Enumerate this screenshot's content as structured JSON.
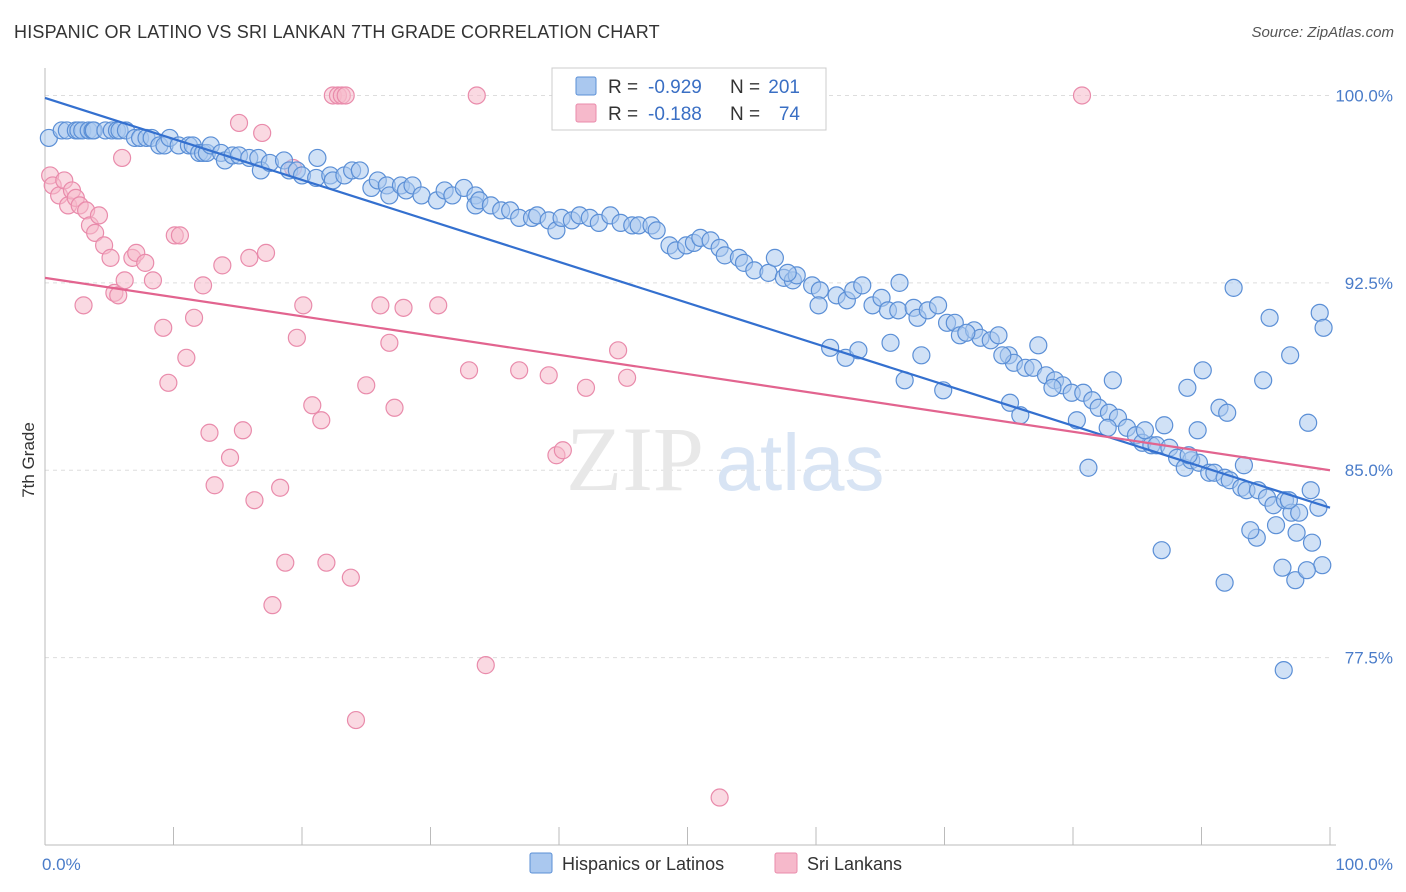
{
  "title": "HISPANIC OR LATINO VS SRI LANKAN 7TH GRADE CORRELATION CHART",
  "source": "Source: ZipAtlas.com",
  "watermark": {
    "zip": "ZIP",
    "atlas": "atlas"
  },
  "colors": {
    "blue_fill": "#aac8ef",
    "blue_stroke": "#5b8fd6",
    "blue_line": "#3470cf",
    "pink_fill": "#f6b9cb",
    "pink_stroke": "#e98bab",
    "pink_line": "#e2648f",
    "grid": "#dddddd",
    "tick_text": "#4a7cc9"
  },
  "legend": {
    "rows": [
      {
        "r_label": "R =",
        "r_value": "-0.929",
        "n_label": "N =",
        "n_value": "201"
      },
      {
        "r_label": "R =",
        "r_value": "-0.188",
        "n_label": "N =",
        "n_value": "74"
      }
    ]
  },
  "chart_data": {
    "type": "scatter",
    "title": "HISPANIC OR LATINO VS SRI LANKAN 7TH GRADE CORRELATION CHART",
    "xlabel": "",
    "ylabel": "7th Grade",
    "xlim": [
      0,
      100
    ],
    "ylim": [
      70.0,
      101.5
    ],
    "x_tick_labels": [
      "0.0%",
      "100.0%"
    ],
    "y_ticks": [
      77.5,
      85.0,
      92.5,
      100.0
    ],
    "y_tick_labels": [
      "77.5%",
      "85.0%",
      "92.5%",
      "100.0%"
    ],
    "grid": true,
    "legend_position": "bottom-center",
    "series": [
      {
        "name": "Hispanics or Latinos",
        "color": "#aac8ef",
        "trend": {
          "x": [
            0,
            100
          ],
          "y": [
            99.9,
            83.5
          ]
        },
        "points": [
          [
            0.3,
            98.3
          ],
          [
            1.3,
            98.6
          ],
          [
            1.7,
            98.6
          ],
          [
            2.4,
            98.6
          ],
          [
            2.6,
            98.6
          ],
          [
            2.9,
            98.6
          ],
          [
            3.4,
            98.6
          ],
          [
            3.7,
            98.6
          ],
          [
            3.8,
            98.6
          ],
          [
            4.7,
            98.6
          ],
          [
            5.2,
            98.6
          ],
          [
            5.6,
            98.6
          ],
          [
            5.8,
            98.6
          ],
          [
            6.3,
            98.6
          ],
          [
            7.0,
            98.3
          ],
          [
            7.4,
            98.3
          ],
          [
            7.9,
            98.3
          ],
          [
            8.3,
            98.3
          ],
          [
            8.9,
            98.0
          ],
          [
            9.3,
            98.0
          ],
          [
            9.7,
            98.3
          ],
          [
            10.4,
            98.0
          ],
          [
            11.2,
            98.0
          ],
          [
            11.5,
            98.0
          ],
          [
            12.0,
            97.7
          ],
          [
            12.3,
            97.7
          ],
          [
            12.6,
            97.7
          ],
          [
            12.9,
            98.0
          ],
          [
            13.7,
            97.7
          ],
          [
            14.0,
            97.4
          ],
          [
            14.6,
            97.6
          ],
          [
            15.1,
            97.6
          ],
          [
            15.9,
            97.5
          ],
          [
            16.6,
            97.5
          ],
          [
            16.8,
            97.0
          ],
          [
            17.5,
            97.3
          ],
          [
            18.6,
            97.4
          ],
          [
            19.0,
            97.0
          ],
          [
            19.6,
            97.0
          ],
          [
            20.0,
            96.8
          ],
          [
            21.1,
            96.7
          ],
          [
            21.2,
            97.5
          ],
          [
            22.2,
            96.8
          ],
          [
            22.4,
            96.6
          ],
          [
            23.3,
            96.8
          ],
          [
            23.9,
            97.0
          ],
          [
            24.5,
            97.0
          ],
          [
            25.4,
            96.3
          ],
          [
            25.9,
            96.6
          ],
          [
            26.6,
            96.4
          ],
          [
            26.8,
            96.0
          ],
          [
            27.7,
            96.4
          ],
          [
            28.1,
            96.2
          ],
          [
            28.6,
            96.4
          ],
          [
            29.3,
            96.0
          ],
          [
            30.5,
            95.8
          ],
          [
            31.1,
            96.2
          ],
          [
            31.7,
            96.0
          ],
          [
            32.6,
            96.3
          ],
          [
            33.5,
            96.0
          ],
          [
            33.5,
            95.6
          ],
          [
            33.8,
            95.8
          ],
          [
            34.7,
            95.6
          ],
          [
            35.5,
            95.4
          ],
          [
            36.2,
            95.4
          ],
          [
            36.9,
            95.1
          ],
          [
            37.9,
            95.1
          ],
          [
            38.3,
            95.2
          ],
          [
            39.2,
            95.0
          ],
          [
            39.8,
            94.6
          ],
          [
            40.2,
            95.1
          ],
          [
            41.0,
            95.0
          ],
          [
            41.6,
            95.2
          ],
          [
            42.4,
            95.1
          ],
          [
            43.1,
            94.9
          ],
          [
            44.0,
            95.2
          ],
          [
            44.8,
            94.9
          ],
          [
            45.7,
            94.8
          ],
          [
            46.2,
            94.8
          ],
          [
            47.2,
            94.8
          ],
          [
            47.6,
            94.6
          ],
          [
            48.6,
            94.0
          ],
          [
            49.1,
            93.8
          ],
          [
            49.9,
            94.0
          ],
          [
            50.5,
            94.1
          ],
          [
            51.0,
            94.3
          ],
          [
            51.8,
            94.2
          ],
          [
            52.5,
            93.9
          ],
          [
            52.9,
            93.6
          ],
          [
            54.0,
            93.5
          ],
          [
            54.4,
            93.3
          ],
          [
            55.2,
            93.0
          ],
          [
            56.3,
            92.9
          ],
          [
            56.8,
            93.5
          ],
          [
            57.5,
            92.7
          ],
          [
            58.2,
            92.6
          ],
          [
            58.5,
            92.8
          ],
          [
            59.7,
            92.4
          ],
          [
            60.3,
            92.2
          ],
          [
            61.6,
            92.0
          ],
          [
            62.4,
            91.8
          ],
          [
            62.9,
            92.2
          ],
          [
            63.6,
            92.4
          ],
          [
            64.4,
            91.6
          ],
          [
            65.1,
            91.9
          ],
          [
            65.6,
            91.4
          ],
          [
            66.4,
            91.4
          ],
          [
            67.6,
            91.5
          ],
          [
            67.9,
            91.1
          ],
          [
            68.7,
            91.4
          ],
          [
            69.5,
            91.6
          ],
          [
            70.2,
            90.9
          ],
          [
            70.8,
            90.9
          ],
          [
            71.2,
            90.4
          ],
          [
            72.3,
            90.6
          ],
          [
            72.8,
            90.3
          ],
          [
            73.6,
            90.2
          ],
          [
            74.2,
            90.4
          ],
          [
            75.0,
            89.6
          ],
          [
            75.4,
            89.3
          ],
          [
            76.3,
            89.1
          ],
          [
            76.9,
            89.1
          ],
          [
            77.9,
            88.8
          ],
          [
            78.6,
            88.6
          ],
          [
            79.2,
            88.4
          ],
          [
            79.9,
            88.1
          ],
          [
            80.8,
            88.1
          ],
          [
            81.5,
            87.8
          ],
          [
            82.0,
            87.5
          ],
          [
            82.8,
            87.3
          ],
          [
            83.5,
            87.1
          ],
          [
            84.2,
            86.7
          ],
          [
            84.9,
            86.4
          ],
          [
            85.4,
            86.1
          ],
          [
            86.1,
            86.0
          ],
          [
            86.5,
            86.0
          ],
          [
            87.5,
            85.9
          ],
          [
            88.1,
            85.5
          ],
          [
            88.7,
            85.1
          ],
          [
            89.2,
            85.4
          ],
          [
            89.8,
            85.3
          ],
          [
            90.6,
            84.9
          ],
          [
            91.0,
            84.9
          ],
          [
            91.8,
            84.7
          ],
          [
            92.2,
            84.6
          ],
          [
            93.1,
            84.3
          ],
          [
            93.5,
            84.2
          ],
          [
            94.4,
            84.2
          ],
          [
            95.1,
            83.9
          ],
          [
            95.6,
            83.6
          ],
          [
            96.5,
            83.8
          ],
          [
            97.0,
            83.3
          ],
          [
            97.6,
            83.3
          ],
          [
            98.5,
            84.2
          ],
          [
            99.1,
            83.5
          ],
          [
            57.8,
            92.9
          ],
          [
            60.2,
            91.6
          ],
          [
            61.1,
            89.9
          ],
          [
            62.3,
            89.5
          ],
          [
            63.3,
            89.8
          ],
          [
            65.8,
            90.1
          ],
          [
            66.5,
            92.5
          ],
          [
            66.9,
            88.6
          ],
          [
            68.2,
            89.6
          ],
          [
            69.9,
            88.2
          ],
          [
            71.7,
            90.5
          ],
          [
            74.5,
            89.6
          ],
          [
            75.1,
            87.7
          ],
          [
            75.9,
            87.2
          ],
          [
            77.3,
            90.0
          ],
          [
            78.4,
            88.3
          ],
          [
            80.3,
            87.0
          ],
          [
            81.2,
            85.1
          ],
          [
            82.7,
            86.7
          ],
          [
            83.1,
            88.6
          ],
          [
            85.6,
            86.6
          ],
          [
            86.9,
            81.8
          ],
          [
            87.1,
            86.8
          ],
          [
            89.0,
            85.6
          ],
          [
            89.7,
            86.6
          ],
          [
            91.4,
            87.5
          ],
          [
            93.3,
            85.2
          ],
          [
            94.3,
            82.3
          ],
          [
            95.8,
            82.8
          ],
          [
            96.3,
            81.1
          ],
          [
            96.8,
            83.8
          ],
          [
            97.4,
            82.5
          ],
          [
            98.6,
            82.1
          ],
          [
            99.4,
            81.2
          ],
          [
            88.9,
            88.3
          ],
          [
            90.1,
            89.0
          ],
          [
            92.0,
            87.3
          ],
          [
            93.8,
            82.6
          ],
          [
            94.8,
            88.6
          ],
          [
            95.3,
            91.1
          ],
          [
            96.9,
            89.6
          ],
          [
            98.3,
            86.9
          ],
          [
            92.5,
            92.3
          ],
          [
            91.8,
            80.5
          ],
          [
            96.4,
            77.0
          ],
          [
            97.3,
            80.6
          ],
          [
            98.2,
            81.0
          ],
          [
            99.2,
            91.3
          ],
          [
            99.5,
            90.7
          ]
        ]
      },
      {
        "name": "Sri Lankans",
        "color": "#f6b9cb",
        "trend": {
          "x": [
            0,
            100
          ],
          "y": [
            92.7,
            85.0
          ]
        },
        "points": [
          [
            0.4,
            96.8
          ],
          [
            0.6,
            96.4
          ],
          [
            1.1,
            96.0
          ],
          [
            1.5,
            96.6
          ],
          [
            1.8,
            95.6
          ],
          [
            2.1,
            96.2
          ],
          [
            2.4,
            95.9
          ],
          [
            2.7,
            95.6
          ],
          [
            3.2,
            95.4
          ],
          [
            3.5,
            94.8
          ],
          [
            3.9,
            94.5
          ],
          [
            4.2,
            95.2
          ],
          [
            4.6,
            94.0
          ],
          [
            5.1,
            93.5
          ],
          [
            5.4,
            92.1
          ],
          [
            5.7,
            92.0
          ],
          [
            6.2,
            92.6
          ],
          [
            6.8,
            93.5
          ],
          [
            7.1,
            93.7
          ],
          [
            7.8,
            93.3
          ],
          [
            8.4,
            92.6
          ],
          [
            9.2,
            90.7
          ],
          [
            9.6,
            88.5
          ],
          [
            10.1,
            94.4
          ],
          [
            10.5,
            94.4
          ],
          [
            11.0,
            89.5
          ],
          [
            11.6,
            91.1
          ],
          [
            12.3,
            92.4
          ],
          [
            13.2,
            84.4
          ],
          [
            13.8,
            93.2
          ],
          [
            14.4,
            85.5
          ],
          [
            15.1,
            98.9
          ],
          [
            15.4,
            86.6
          ],
          [
            15.9,
            93.5
          ],
          [
            16.3,
            83.8
          ],
          [
            16.9,
            98.5
          ],
          [
            17.2,
            93.7
          ],
          [
            17.7,
            79.6
          ],
          [
            18.3,
            84.3
          ],
          [
            18.7,
            81.3
          ],
          [
            19.3,
            97.1
          ],
          [
            19.6,
            90.3
          ],
          [
            20.1,
            91.6
          ],
          [
            20.8,
            87.6
          ],
          [
            21.5,
            87.0
          ],
          [
            21.9,
            81.3
          ],
          [
            22.4,
            100.0
          ],
          [
            22.8,
            100.0
          ],
          [
            23.1,
            100.0
          ],
          [
            23.4,
            100.0
          ],
          [
            23.8,
            80.7
          ],
          [
            24.2,
            75.0
          ],
          [
            25.0,
            88.4
          ],
          [
            26.1,
            91.6
          ],
          [
            27.2,
            87.5
          ],
          [
            27.9,
            91.5
          ],
          [
            30.6,
            91.6
          ],
          [
            33.0,
            89.0
          ],
          [
            33.6,
            100.0
          ],
          [
            34.3,
            77.2
          ],
          [
            36.9,
            89.0
          ],
          [
            39.2,
            88.8
          ],
          [
            39.8,
            85.6
          ],
          [
            40.3,
            85.8
          ],
          [
            42.1,
            88.3
          ],
          [
            44.6,
            89.8
          ],
          [
            45.3,
            88.7
          ],
          [
            51.9,
            100.0
          ],
          [
            52.5,
            71.9
          ],
          [
            80.7,
            100.0
          ],
          [
            6.0,
            97.5
          ],
          [
            3.0,
            91.6
          ],
          [
            12.8,
            86.5
          ],
          [
            26.8,
            90.1
          ]
        ]
      }
    ]
  },
  "bottom_legend": [
    {
      "label": "Hispanics or Latinos"
    },
    {
      "label": "Sri Lankans"
    }
  ]
}
